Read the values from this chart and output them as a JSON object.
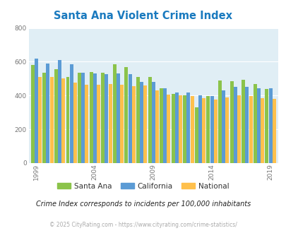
{
  "title": "Santa Ana Violent Crime Index",
  "title_color": "#1a7abf",
  "subtitle": "Crime Index corresponds to incidents per 100,000 inhabitants",
  "footer": "© 2025 CityRating.com - https://www.cityrating.com/crime-statistics/",
  "years": [
    1999,
    2000,
    2001,
    2002,
    2003,
    2004,
    2005,
    2006,
    2007,
    2008,
    2009,
    2010,
    2011,
    2012,
    2013,
    2014,
    2015,
    2016,
    2017,
    2018,
    2019
  ],
  "santa_ana": [
    580,
    535,
    555,
    510,
    535,
    540,
    535,
    585,
    570,
    510,
    510,
    445,
    410,
    400,
    330,
    395,
    490,
    485,
    495,
    470,
    440
  ],
  "california": [
    620,
    590,
    610,
    585,
    535,
    530,
    525,
    530,
    525,
    480,
    480,
    445,
    420,
    420,
    400,
    395,
    430,
    450,
    450,
    445,
    445
  ],
  "national": [
    510,
    510,
    500,
    475,
    465,
    465,
    470,
    465,
    455,
    460,
    430,
    405,
    400,
    395,
    385,
    375,
    390,
    400,
    395,
    385,
    380
  ],
  "bar_colors": {
    "santa_ana": "#8bc34a",
    "california": "#5b9bd5",
    "national": "#ffc04c"
  },
  "ylim": [
    0,
    800
  ],
  "yticks": [
    0,
    200,
    400,
    600,
    800
  ],
  "xtick_years": [
    1999,
    2004,
    2009,
    2014,
    2019
  ],
  "plot_bg": "#e0eef5",
  "legend_labels": [
    "Santa Ana",
    "California",
    "National"
  ],
  "legend_colors": [
    "#8bc34a",
    "#5b9bd5",
    "#ffc04c"
  ]
}
